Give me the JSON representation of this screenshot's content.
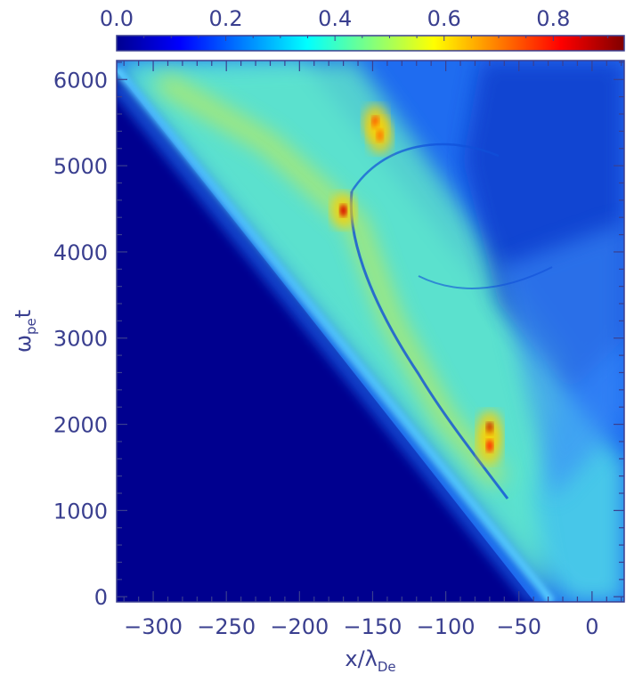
{
  "chart_data": {
    "type": "heatmap",
    "title": "",
    "xlabel": {
      "main": "x/λ",
      "sub": "De"
    },
    "ylabel": {
      "main": "ω",
      "sub": "pe",
      "suffix": "t"
    },
    "xlim": [
      -325,
      22
    ],
    "ylim": [
      -60,
      6220
    ],
    "x_ticks": [
      {
        "value": -300,
        "label": "−300"
      },
      {
        "value": -250,
        "label": "−250"
      },
      {
        "value": -200,
        "label": "−200"
      },
      {
        "value": -150,
        "label": "−150"
      },
      {
        "value": -100,
        "label": "−100"
      },
      {
        "value": -50,
        "label": "−50"
      },
      {
        "value": 0,
        "label": "0"
      }
    ],
    "y_ticks": [
      {
        "value": 0,
        "label": "0"
      },
      {
        "value": 1000,
        "label": "1000"
      },
      {
        "value": 2000,
        "label": "2000"
      },
      {
        "value": 3000,
        "label": "3000"
      },
      {
        "value": 4000,
        "label": "4000"
      },
      {
        "value": 5000,
        "label": "5000"
      },
      {
        "value": 6000,
        "label": "6000"
      }
    ],
    "colorbar": {
      "range": [
        0,
        0.93
      ],
      "position": "top",
      "colormap": "jet",
      "ticks": [
        {
          "value": 0.0,
          "label": "0.0"
        },
        {
          "value": 0.2,
          "label": "0.2"
        },
        {
          "value": 0.4,
          "label": "0.4"
        },
        {
          "value": 0.6,
          "label": "0.6"
        },
        {
          "value": 0.8,
          "label": "0.8"
        }
      ]
    },
    "features": {
      "front_line": {
        "x": [
          -20,
          -325
        ],
        "t": [
          100,
          6150
        ],
        "peak_value": 0.38
      },
      "bright_band": {
        "x": [
          -65,
          -180,
          -320
        ],
        "t": [
          1600,
          4200,
          6100
        ],
        "value": 0.55
      },
      "hotspots": [
        {
          "x": -70,
          "t": 1950,
          "value": 0.88
        },
        {
          "x": -70,
          "t": 1750,
          "value": 0.78
        },
        {
          "x": -170,
          "t": 4480,
          "value": 0.85
        },
        {
          "x": -148,
          "t": 5500,
          "value": 0.8
        },
        {
          "x": -145,
          "t": 5350,
          "value": 0.7
        }
      ]
    }
  },
  "colors": {
    "axis": "#3a3f8f",
    "background": "#ffffff",
    "heat_low": "#00008f",
    "heat_mid": "#00ffff",
    "heat_high": "#800000"
  }
}
